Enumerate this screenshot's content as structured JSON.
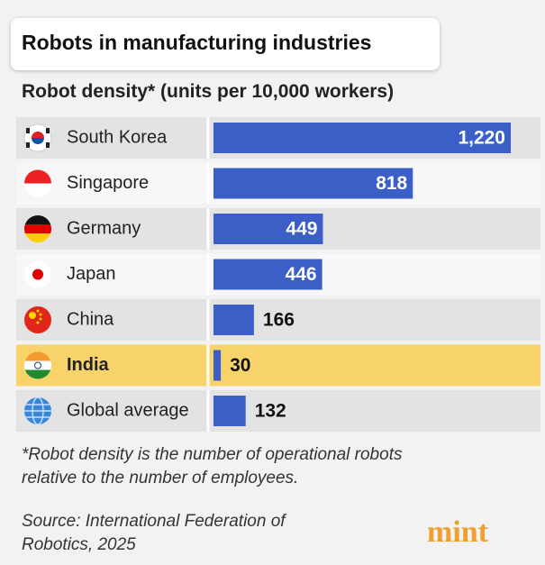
{
  "chart_data": {
    "type": "bar",
    "orientation": "horizontal",
    "title": "Robots in manufacturing industries",
    "subtitle": "Robot density* (units per 10,000 workers)",
    "categories": [
      "South Korea",
      "Singapore",
      "Germany",
      "Japan",
      "China",
      "India",
      "Global average"
    ],
    "values": [
      1220,
      818,
      449,
      446,
      166,
      30,
      132
    ],
    "value_labels": [
      "1,220",
      "818",
      "449",
      "446",
      "166",
      "30",
      "132"
    ],
    "color": "#3b5fc6",
    "footnote": "*Robot density is the number of operational robots relative to the number of employees.",
    "source": "Source: International Federation of Robotics, 2025",
    "brand": "mint"
  }
}
